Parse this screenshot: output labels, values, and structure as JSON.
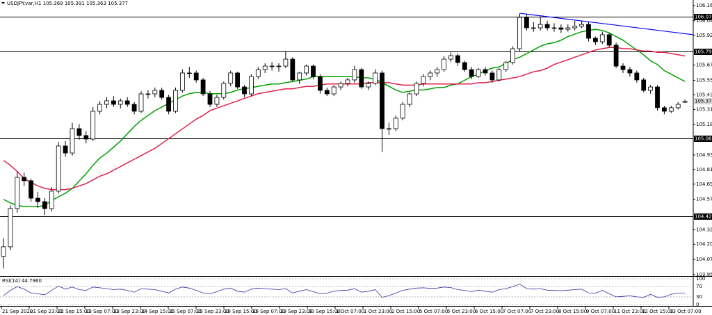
{
  "chart_data": {
    "type": "candlestick",
    "header": "USDJPY.var,H1  105.369 105.391 105.363 105.377",
    "ylim": [
      103.938,
      106.211
    ],
    "yticks": [
      106.165,
      {
        "value": 106.04,
        "label": "106.040"
      },
      {
        "value": 105.92,
        "label": "105.920"
      },
      105.675,
      {
        "value": 105.55,
        "label": "105.550"
      },
      {
        "value": 105.43,
        "label": "105.430"
      },
      {
        "value": 105.31,
        "label": "105.310"
      },
      105.185,
      104.935,
      104.815,
      104.695,
      {
        "value": 104.57,
        "label": "104.570"
      },
      {
        "value": 104.32,
        "label": "104.320"
      },
      {
        "value": 104.2,
        "label": "104.200"
      },
      104.075,
      {
        "value": 103.95,
        "label": "103.950"
      }
    ],
    "xtick_labels": [
      "21 Sep 2020",
      "21 Sep 23:00",
      "22 Sep 15:00",
      "23 Sep 07:00",
      "23 Sep 23:00",
      "24 Sep 15:00",
      "25 Sep 07:00",
      "25 Sep 23:00",
      "28 Sep 15:00",
      "29 Sep 07:00",
      "29 Sep 23:00",
      "30 Sep 15:00",
      "1 Oct 07:00",
      "1 Oct 23:00",
      "2 Oct 15:00",
      "5 Oct 07:00",
      "5 Oct 23:00",
      "6 Oct 15:00",
      "7 Oct 07:00",
      "7 Oct 23:00",
      "8 Oct 15:00",
      "9 Oct 07:00",
      "11 Oct 23:00",
      "12 Oct 15:00",
      "13 Oct 07:00"
    ],
    "levels": [
      106.073,
      {
        "value": 105.79,
        "label": "105.790"
      },
      105.069,
      104.429
    ],
    "current_price": 105.377,
    "candle_colors": {
      "up": "#ffffff",
      "down": "#000000",
      "outline": "#000000"
    },
    "ohlc": [
      [
        104.1,
        104.25,
        104.0,
        104.179
      ],
      [
        104.179,
        104.52,
        104.15,
        104.494
      ],
      [
        104.494,
        104.8,
        104.46,
        104.751
      ],
      [
        104.751,
        104.79,
        104.68,
        104.723
      ],
      [
        104.723,
        104.74,
        104.55,
        104.579
      ],
      [
        104.579,
        104.63,
        104.5,
        104.551
      ],
      [
        104.551,
        104.58,
        104.44,
        104.494
      ],
      [
        104.494,
        104.67,
        104.47,
        104.637
      ],
      [
        104.637,
        105.04,
        104.62,
        105.009
      ],
      [
        105.009,
        105.05,
        104.92,
        104.951
      ],
      [
        104.951,
        105.2,
        104.93,
        105.152
      ],
      [
        105.152,
        105.19,
        105.06,
        105.095
      ],
      [
        105.095,
        105.13,
        105.03,
        105.066
      ],
      [
        105.066,
        105.33,
        105.05,
        105.295
      ],
      [
        105.295,
        105.38,
        105.27,
        105.352
      ],
      [
        105.352,
        105.41,
        105.32,
        105.381
      ],
      [
        105.381,
        105.42,
        105.33,
        105.352
      ],
      [
        105.352,
        105.4,
        105.32,
        105.381
      ],
      [
        105.381,
        105.41,
        105.33,
        105.352
      ],
      [
        105.352,
        105.37,
        105.27,
        105.295
      ],
      [
        105.295,
        105.46,
        105.28,
        105.438
      ],
      [
        105.438,
        105.47,
        105.4,
        105.438
      ],
      [
        105.438,
        105.49,
        105.41,
        105.467
      ],
      [
        105.467,
        105.49,
        105.39,
        105.409
      ],
      [
        105.409,
        105.43,
        105.27,
        105.295
      ],
      [
        105.295,
        105.49,
        105.28,
        105.467
      ],
      [
        105.467,
        105.64,
        105.45,
        105.61
      ],
      [
        105.61,
        105.66,
        105.57,
        105.61
      ],
      [
        105.61,
        105.63,
        105.53,
        105.553
      ],
      [
        105.553,
        105.57,
        105.42,
        105.438
      ],
      [
        105.438,
        105.46,
        105.33,
        105.352
      ],
      [
        105.352,
        105.43,
        105.33,
        105.409
      ],
      [
        105.409,
        105.54,
        105.39,
        105.524
      ],
      [
        105.524,
        105.63,
        105.5,
        105.61
      ],
      [
        105.61,
        105.62,
        105.48,
        105.495
      ],
      [
        105.495,
        105.51,
        105.41,
        105.438
      ],
      [
        105.438,
        105.6,
        105.42,
        105.581
      ],
      [
        105.581,
        105.66,
        105.56,
        105.638
      ],
      [
        105.638,
        105.69,
        105.61,
        105.667
      ],
      [
        105.667,
        105.7,
        105.63,
        105.667
      ],
      [
        105.667,
        105.69,
        105.62,
        105.667
      ],
      [
        105.667,
        105.79,
        105.65,
        105.724
      ],
      [
        105.724,
        105.74,
        105.54,
        105.553
      ],
      [
        105.553,
        105.62,
        105.52,
        105.61
      ],
      [
        105.61,
        105.68,
        105.59,
        105.667
      ],
      [
        105.667,
        105.68,
        105.56,
        105.581
      ],
      [
        105.581,
        105.6,
        105.44,
        105.467
      ],
      [
        105.467,
        105.49,
        105.42,
        105.438
      ],
      [
        105.438,
        105.51,
        105.42,
        105.495
      ],
      [
        105.495,
        105.54,
        105.47,
        105.524
      ],
      [
        105.524,
        105.57,
        105.5,
        105.553
      ],
      [
        105.553,
        105.67,
        105.53,
        105.638
      ],
      [
        105.638,
        105.65,
        105.48,
        105.495
      ],
      [
        105.495,
        105.54,
        105.47,
        105.524
      ],
      [
        105.524,
        105.64,
        105.51,
        105.61
      ],
      [
        105.61,
        105.63,
        104.96,
        105.152
      ],
      [
        105.152,
        105.2,
        105.1,
        105.152
      ],
      [
        105.152,
        105.26,
        105.13,
        105.238
      ],
      [
        105.238,
        105.37,
        105.22,
        105.352
      ],
      [
        105.352,
        105.45,
        105.33,
        105.438
      ],
      [
        105.438,
        105.54,
        105.42,
        105.524
      ],
      [
        105.524,
        105.6,
        105.5,
        105.581
      ],
      [
        105.581,
        105.63,
        105.55,
        105.61
      ],
      [
        105.61,
        105.66,
        105.58,
        105.638
      ],
      [
        105.638,
        105.75,
        105.62,
        105.724
      ],
      [
        105.724,
        105.78,
        105.7,
        105.753
      ],
      [
        105.753,
        105.77,
        105.67,
        105.696
      ],
      [
        105.696,
        105.71,
        105.62,
        105.638
      ],
      [
        105.638,
        105.66,
        105.56,
        105.581
      ],
      [
        105.581,
        105.65,
        105.57,
        105.638
      ],
      [
        105.638,
        105.66,
        105.59,
        105.61
      ],
      [
        105.61,
        105.63,
        105.53,
        105.553
      ],
      [
        105.553,
        105.65,
        105.54,
        105.638
      ],
      [
        105.638,
        105.71,
        105.62,
        105.696
      ],
      [
        105.696,
        105.83,
        105.68,
        105.81
      ],
      [
        105.81,
        106.1,
        105.79,
        106.068
      ],
      [
        106.068,
        106.09,
        105.96,
        105.982
      ],
      [
        105.982,
        106.03,
        105.95,
        105.982
      ],
      [
        105.982,
        106.07,
        105.96,
        106.01
      ],
      [
        106.01,
        106.04,
        105.96,
        105.982
      ],
      [
        105.982,
        106.02,
        105.95,
        105.982
      ],
      [
        105.982,
        106.01,
        105.94,
        105.97
      ],
      [
        105.97,
        106.01,
        105.95,
        105.982
      ],
      [
        105.982,
        106.04,
        105.96,
        105.995
      ],
      [
        105.995,
        106.04,
        105.98,
        106.01
      ],
      [
        106.01,
        106.03,
        105.87,
        105.896
      ],
      [
        105.896,
        105.91,
        105.84,
        105.867
      ],
      [
        105.867,
        105.95,
        105.85,
        105.925
      ],
      [
        105.925,
        105.94,
        105.82,
        105.839
      ],
      [
        105.839,
        105.86,
        105.65,
        105.667
      ],
      [
        105.667,
        105.69,
        105.61,
        105.638
      ],
      [
        105.638,
        105.66,
        105.58,
        105.61
      ],
      [
        105.61,
        105.63,
        105.53,
        105.553
      ],
      [
        105.553,
        105.57,
        105.45,
        105.467
      ],
      [
        105.467,
        105.51,
        105.44,
        105.495
      ],
      [
        105.495,
        105.51,
        105.3,
        105.324
      ],
      [
        105.324,
        105.34,
        105.27,
        105.295
      ],
      [
        105.295,
        105.34,
        105.28,
        105.324
      ],
      [
        105.324,
        105.37,
        105.31,
        105.352
      ],
      [
        105.369,
        105.391,
        105.363,
        105.377
      ]
    ],
    "moving_averages": [
      {
        "color": "#00a000",
        "values": [
          104.57,
          104.54,
          104.52,
          104.51,
          104.51,
          104.51,
          104.52,
          104.56,
          104.59,
          104.62,
          104.66,
          104.72,
          104.78,
          104.85,
          104.91,
          104.95,
          105.0,
          105.05,
          105.11,
          105.17,
          105.22,
          105.26,
          105.3,
          105.33,
          105.36,
          105.39,
          105.42,
          105.44,
          105.45,
          105.45,
          105.44,
          105.44,
          105.44,
          105.45,
          105.47,
          105.48,
          105.49,
          105.5,
          105.51,
          105.52,
          105.52,
          105.53,
          105.54,
          105.55,
          105.56,
          105.58,
          105.58,
          105.58,
          105.58,
          105.58,
          105.58,
          105.58,
          105.57,
          105.57,
          105.56,
          105.53,
          105.5,
          105.47,
          105.45,
          105.46,
          105.47,
          105.47,
          105.48,
          105.49,
          105.49,
          105.51,
          105.52,
          105.55,
          105.58,
          105.6,
          105.63,
          105.65,
          105.66,
          105.69,
          105.72,
          105.74,
          105.77,
          105.8,
          105.83,
          105.85,
          105.86,
          105.88,
          105.91,
          105.93,
          105.95,
          105.96,
          105.97,
          105.96,
          105.94,
          105.91,
          105.88,
          105.84,
          105.8,
          105.76,
          105.71,
          105.68,
          105.63,
          105.6,
          105.57,
          105.54
        ]
      },
      {
        "color": "#e0204a",
        "values": [
          104.89,
          104.85,
          104.8,
          104.74,
          104.71,
          104.68,
          104.66,
          104.65,
          104.65,
          104.65,
          104.66,
          104.68,
          104.7,
          104.73,
          104.76,
          104.78,
          104.81,
          104.84,
          104.87,
          104.9,
          104.93,
          104.96,
          104.99,
          105.03,
          105.07,
          105.11,
          105.15,
          105.19,
          105.23,
          105.26,
          105.3,
          105.32,
          105.34,
          105.36,
          105.38,
          105.4,
          105.42,
          105.44,
          105.45,
          105.46,
          105.47,
          105.48,
          105.48,
          105.49,
          105.5,
          105.5,
          105.51,
          105.52,
          105.52,
          105.52,
          105.52,
          105.52,
          105.52,
          105.53,
          105.53,
          105.53,
          105.53,
          105.52,
          105.51,
          105.51,
          105.51,
          105.52,
          105.52,
          105.52,
          105.52,
          105.52,
          105.52,
          105.52,
          105.52,
          105.53,
          105.53,
          105.54,
          105.55,
          105.56,
          105.57,
          105.58,
          105.6,
          105.62,
          105.63,
          105.65,
          105.68,
          105.7,
          105.72,
          105.74,
          105.76,
          105.78,
          105.8,
          105.81,
          105.82,
          105.82,
          105.81,
          105.81,
          105.8,
          105.79,
          105.79,
          105.78,
          105.78,
          105.77,
          105.76,
          105.75
        ]
      }
    ],
    "trendline": {
      "color": "#0000ff",
      "values": [
        106.102,
        105.925
      ]
    },
    "rsi": {
      "label": "RSI(14) 44.7960",
      "color": "#3030a0",
      "ylim": [
        0,
        100
      ],
      "yticks": [
        100,
        70,
        30,
        0
      ],
      "values": [
        35,
        55,
        70,
        60,
        45,
        42,
        38,
        55,
        72,
        60,
        68,
        58,
        55,
        68,
        65,
        62,
        58,
        60,
        55,
        48,
        62,
        60,
        58,
        52,
        45,
        60,
        68,
        64,
        55,
        45,
        42,
        50,
        60,
        64,
        52,
        48,
        60,
        64,
        62,
        60,
        58,
        62,
        45,
        52,
        58,
        50,
        42,
        44,
        52,
        55,
        56,
        62,
        48,
        52,
        58,
        28,
        35,
        45,
        55,
        60,
        64,
        65,
        63,
        64,
        68,
        66,
        58,
        55,
        50,
        56,
        52,
        48,
        58,
        62,
        70,
        80,
        62,
        60,
        62,
        56,
        55,
        54,
        56,
        58,
        60,
        45,
        44,
        55,
        42,
        30,
        32,
        34,
        30,
        28,
        40,
        28,
        30,
        40,
        45,
        44.796
      ]
    }
  }
}
